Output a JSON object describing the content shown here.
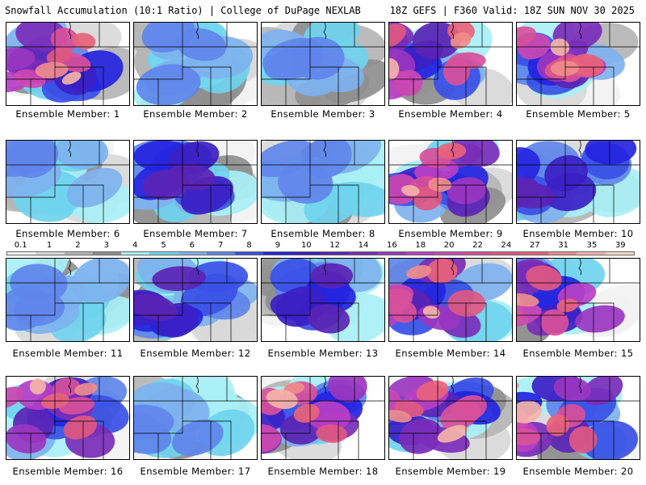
{
  "header": {
    "left_title": "Snowfall Accumulation (10:1 Ratio) | College of DuPage NEXLAB",
    "right_title": "18Z GEFS | F360 Valid: 18Z SUN NOV 30 2025"
  },
  "colorbar": {
    "ticks": [
      "0.1",
      "1",
      "2",
      "3",
      "4",
      "5",
      "6",
      "7",
      "8",
      "9",
      "10",
      "12",
      "14",
      "16",
      "18",
      "20",
      "22",
      "24",
      "27",
      "31",
      "35",
      "39"
    ],
    "colors": [
      "#f2f2f2",
      "#d9d9d9",
      "#b5b5b5",
      "#8f8f8f",
      "#a8f0f5",
      "#6fd4ee",
      "#7eb2ee",
      "#5f86ea",
      "#3a50e6",
      "#2424e0",
      "#3b1fc4",
      "#5a24b4",
      "#7a2db8",
      "#9a36c0",
      "#b83fc6",
      "#cc48b2",
      "#d8509a",
      "#e05882",
      "#e8637a",
      "#f08c8c",
      "#f5b3a8",
      "#fbd7c8"
    ]
  },
  "members": [
    {
      "label": "Ensemble Member: 1",
      "intensity": "high"
    },
    {
      "label": "Ensemble Member: 2",
      "intensity": "low"
    },
    {
      "label": "Ensemble Member: 3",
      "intensity": "low"
    },
    {
      "label": "Ensemble Member: 4",
      "intensity": "high"
    },
    {
      "label": "Ensemble Member: 5",
      "intensity": "high"
    },
    {
      "label": "Ensemble Member: 6",
      "intensity": "low"
    },
    {
      "label": "Ensemble Member: 7",
      "intensity": "medium"
    },
    {
      "label": "Ensemble Member: 8",
      "intensity": "low"
    },
    {
      "label": "Ensemble Member: 9",
      "intensity": "high"
    },
    {
      "label": "Ensemble Member: 10",
      "intensity": "medium"
    },
    {
      "label": "Ensemble Member: 11",
      "intensity": "low"
    },
    {
      "label": "Ensemble Member: 12",
      "intensity": "medium"
    },
    {
      "label": "Ensemble Member: 13",
      "intensity": "medium"
    },
    {
      "label": "Ensemble Member: 14",
      "intensity": "high"
    },
    {
      "label": "Ensemble Member: 15",
      "intensity": "high"
    },
    {
      "label": "Ensemble Member: 16",
      "intensity": "high"
    },
    {
      "label": "Ensemble Member: 17",
      "intensity": "low"
    },
    {
      "label": "Ensemble Member: 18",
      "intensity": "high"
    },
    {
      "label": "Ensemble Member: 19",
      "intensity": "high"
    },
    {
      "label": "Ensemble Member: 20",
      "intensity": "high"
    }
  ]
}
